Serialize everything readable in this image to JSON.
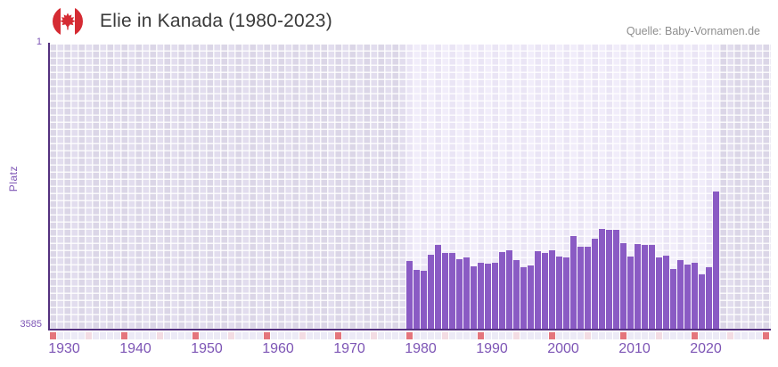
{
  "header": {
    "title": "Elie in Kanada (1980-2023)",
    "source": "Quelle: Baby-Vornamen.de"
  },
  "chart_data": {
    "type": "bar",
    "title": "Elie in Kanada (1980-2023)",
    "xlabel": "",
    "ylabel": "Platz",
    "y_axis": {
      "top_label": "1",
      "bottom_label": "3585",
      "min": 1,
      "max": 3585,
      "inverted": true
    },
    "x_axis": {
      "start": 1930,
      "end": 2030,
      "tick_years": [
        1930,
        1940,
        1950,
        1960,
        1970,
        1980,
        1990,
        2000,
        2010,
        2020
      ]
    },
    "highlight_range": [
      1980,
      2023
    ],
    "years": [
      1980,
      1981,
      1982,
      1983,
      1984,
      1985,
      1986,
      1987,
      1988,
      1989,
      1990,
      1991,
      1992,
      1993,
      1994,
      1995,
      1996,
      1997,
      1998,
      1999,
      2000,
      2001,
      2002,
      2003,
      2004,
      2005,
      2006,
      2007,
      2008,
      2009,
      2010,
      2011,
      2012,
      2013,
      2014,
      2015,
      2016,
      2017,
      2018,
      2019,
      2020,
      2021,
      2022,
      2023
    ],
    "values": [
      2720,
      2835,
      2850,
      2640,
      2520,
      2620,
      2620,
      2700,
      2680,
      2790,
      2740,
      2760,
      2750,
      2610,
      2585,
      2710,
      2800,
      2775,
      2600,
      2620,
      2585,
      2665,
      2680,
      2410,
      2540,
      2540,
      2440,
      2320,
      2330,
      2330,
      2495,
      2670,
      2510,
      2520,
      2520,
      2680,
      2660,
      2820,
      2715,
      2765,
      2750,
      2890,
      2800,
      1845
    ],
    "legend": null,
    "grid": true,
    "colors": {
      "bar": "#8a5bc4",
      "axis": "#54317f",
      "tick_label": "#7d55b5",
      "decade_tick": "#e4757c",
      "half_decade_tick": "#f3dce3",
      "year_tick": "#eceaf6",
      "band_light": "#f1edfa",
      "band_dim": "#e2ddee",
      "flag_red": "#d52b33"
    }
  }
}
